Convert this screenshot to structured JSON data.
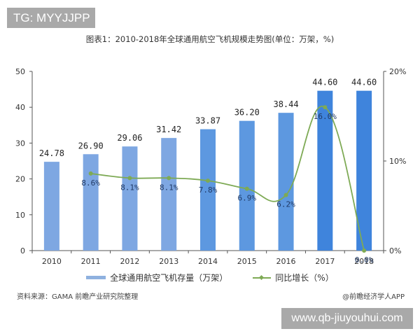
{
  "watermark_top": "TG: MYYJJPP",
  "watermark_bottom": "www.qb-jiuyouhui.com",
  "title": "图表1：2010-2018年全球通用航空飞机规模走势图(单位：万架，%)",
  "legend": {
    "bar_label": "全球通用航空飞机存量（万架）",
    "line_label": "同比增长（%）"
  },
  "footer": {
    "source": "资料来源：GAMA 前瞻产业研究院整理",
    "credit": "@前瞻经济学人APP"
  },
  "colors": {
    "bar_light": "#7ea7e2",
    "bar_dark": "#3f84dc",
    "line": "#7eaa55",
    "label": "#1f3864"
  },
  "chart_data": {
    "type": "bar",
    "title": "2010-2018年全球通用航空飞机规模走势图(单位：万架，%)",
    "categories": [
      "2010",
      "2011",
      "2012",
      "2013",
      "2014",
      "2015",
      "2016",
      "2017",
      "2018"
    ],
    "series": [
      {
        "name": "全球通用航空飞机存量（万架）",
        "type": "bar",
        "axis": "left",
        "values": [
          24.78,
          26.9,
          29.06,
          31.42,
          33.87,
          36.2,
          38.44,
          44.6,
          44.6
        ],
        "labels": [
          "24.78",
          "26.90",
          "29.06",
          "31.42",
          "33.87",
          "36.20",
          "38.44",
          "44.60",
          "44.60"
        ]
      },
      {
        "name": "同比增长（%）",
        "type": "line",
        "axis": "right",
        "values": [
          null,
          8.6,
          8.1,
          8.1,
          7.8,
          6.9,
          6.2,
          16.0,
          0.0
        ],
        "labels": [
          "",
          "8.6%",
          "8.1%",
          "8.1%",
          "7.8%",
          "6.9%",
          "6.2%",
          "16.0%",
          "0.0%"
        ]
      }
    ],
    "left_axis": {
      "ticks": [
        "0",
        "10",
        "20",
        "30",
        "40",
        "50"
      ],
      "ylim": [
        0,
        50
      ]
    },
    "right_axis": {
      "ticks": [
        "0%",
        "10%",
        "20%"
      ],
      "ylim": [
        0,
        20
      ]
    },
    "xlabel": "",
    "ylabel": "",
    "grid": false,
    "legend_position": "bottom"
  }
}
